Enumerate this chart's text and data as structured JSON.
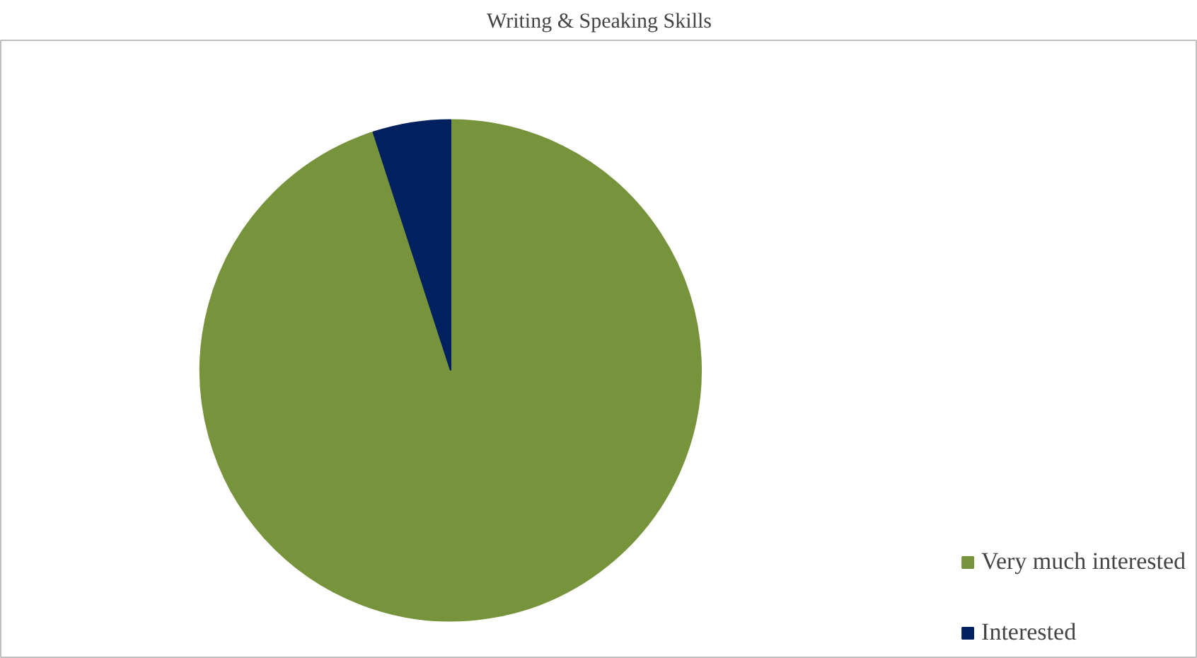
{
  "chart_data": {
    "type": "pie",
    "title": "Writing & Speaking Skills",
    "categories": [
      "Very much interested",
      "Interested"
    ],
    "values": [
      95,
      5
    ],
    "colors": [
      "#77933c",
      "#002060"
    ],
    "legend": "bottom right"
  }
}
